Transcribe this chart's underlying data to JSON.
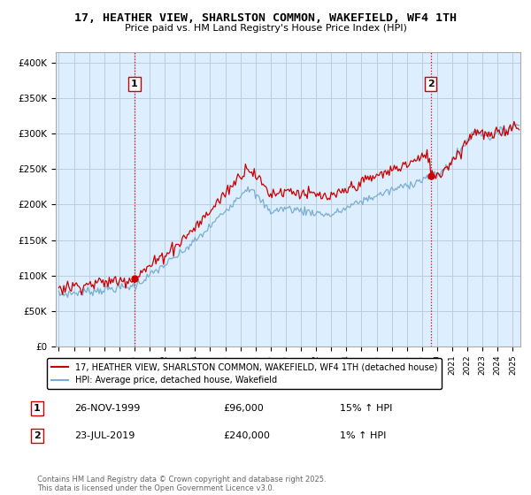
{
  "title": "17, HEATHER VIEW, SHARLSTON COMMON, WAKEFIELD, WF4 1TH",
  "subtitle": "Price paid vs. HM Land Registry's House Price Index (HPI)",
  "ylabel_ticks": [
    "£0",
    "£50K",
    "£100K",
    "£150K",
    "£200K",
    "£250K",
    "£300K",
    "£350K",
    "£400K"
  ],
  "ytick_vals": [
    0,
    50000,
    100000,
    150000,
    200000,
    250000,
    300000,
    350000,
    400000
  ],
  "ylim": [
    0,
    415000
  ],
  "xlim_start": 1994.8,
  "xlim_end": 2025.5,
  "purchase1_x": 2000.0,
  "purchase1_price": 96000,
  "purchase2_x": 2019.58,
  "purchase2_price": 240000,
  "legend_line1": "17, HEATHER VIEW, SHARLSTON COMMON, WAKEFIELD, WF4 1TH (detached house)",
  "legend_line2": "HPI: Average price, detached house, Wakefield",
  "annotation1_date": "26-NOV-1999",
  "annotation1_price": "£96,000",
  "annotation1_hpi": "15% ↑ HPI",
  "annotation2_date": "23-JUL-2019",
  "annotation2_price": "£240,000",
  "annotation2_hpi": "1% ↑ HPI",
  "footer": "Contains HM Land Registry data © Crown copyright and database right 2025.\nThis data is licensed under the Open Government Licence v3.0.",
  "line_color_red": "#cc0000",
  "line_color_blue": "#7aadcf",
  "bg_plot": "#ddeeff",
  "bg_fig": "#ffffff",
  "grid_color": "#bbccdd"
}
